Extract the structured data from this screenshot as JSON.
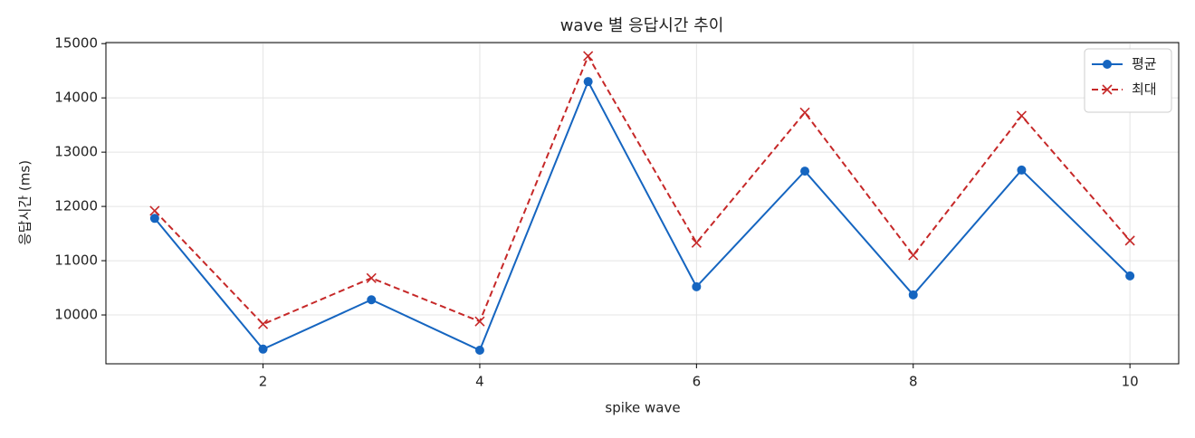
{
  "chart_data": {
    "type": "line",
    "title": "wave 별 응답시간 추이",
    "x_label": "spike wave",
    "y_label": "응답시간 (ms)",
    "x": [
      1,
      2,
      3,
      4,
      5,
      6,
      7,
      8,
      9,
      10
    ],
    "series": [
      {
        "name": "평균",
        "color": "#1565c0",
        "marker": "circle",
        "dash": "solid",
        "values": [
          11780,
          9370,
          10280,
          9350,
          14300,
          10520,
          12650,
          10370,
          12670,
          10720
        ]
      },
      {
        "name": "최대",
        "color": "#c62828",
        "marker": "x",
        "dash": "dashed",
        "values": [
          11920,
          9830,
          10680,
          9880,
          14770,
          11330,
          13730,
          11100,
          13670,
          11370
        ]
      }
    ],
    "xlim": [
      0.55,
      10.45
    ],
    "ylim": [
      9100,
      15020
    ],
    "xticks": [
      2,
      4,
      6,
      8,
      10
    ],
    "yticks": [
      10000,
      11000,
      12000,
      13000,
      14000,
      15000
    ],
    "grid": true,
    "legend": "upper-right"
  }
}
